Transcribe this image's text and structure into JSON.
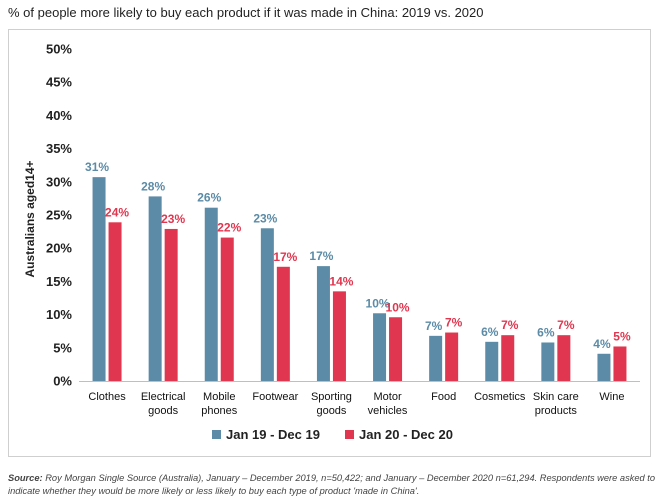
{
  "title": "% of people more likely to buy each product if it was made in China: 2019 vs. 2020",
  "source": {
    "label": "Source:",
    "text": "Roy Morgan Single Source (Australia), January – December 2019, n=50,422; and January – December 2020 n=61,294. Respondents were asked to indicate whether they would be more likely or less likely to buy each type of product 'made in China'."
  },
  "chart_data": {
    "type": "bar",
    "ylabel": "Australians aged14+",
    "ylim": [
      0,
      50
    ],
    "yticks": [
      "0%",
      "5%",
      "10%",
      "15%",
      "20%",
      "25%",
      "30%",
      "35%",
      "40%",
      "45%",
      "50%"
    ],
    "categories": [
      [
        "Clothes"
      ],
      [
        "Electrical",
        "goods"
      ],
      [
        "Mobile",
        "phones"
      ],
      [
        "Footwear"
      ],
      [
        "Sporting",
        "goods"
      ],
      [
        "Motor",
        "vehicles"
      ],
      [
        "Food"
      ],
      [
        "Cosmetics"
      ],
      [
        "Skin care",
        "products"
      ],
      [
        "Wine"
      ]
    ],
    "series": [
      {
        "name": "Jan 19 - Dec 19",
        "color": "#5b8ba6",
        "values": [
          30.7,
          27.8,
          26.1,
          23.0,
          17.3,
          10.2,
          6.8,
          5.9,
          5.8,
          4.1
        ],
        "labels": [
          "31%",
          "28%",
          "26%",
          "23%",
          "17%",
          "10%",
          "7%",
          "6%",
          "6%",
          "4%"
        ]
      },
      {
        "name": "Jan 20 - Dec 20",
        "color": "#e0364f",
        "values": [
          23.9,
          22.9,
          21.6,
          17.2,
          13.5,
          9.6,
          7.3,
          6.9,
          6.9,
          5.2
        ],
        "labels": [
          "24%",
          "23%",
          "22%",
          "17%",
          "14%",
          "10%",
          "7%",
          "7%",
          "7%",
          "5%"
        ]
      }
    ],
    "grid": false,
    "legend": "bottom"
  }
}
